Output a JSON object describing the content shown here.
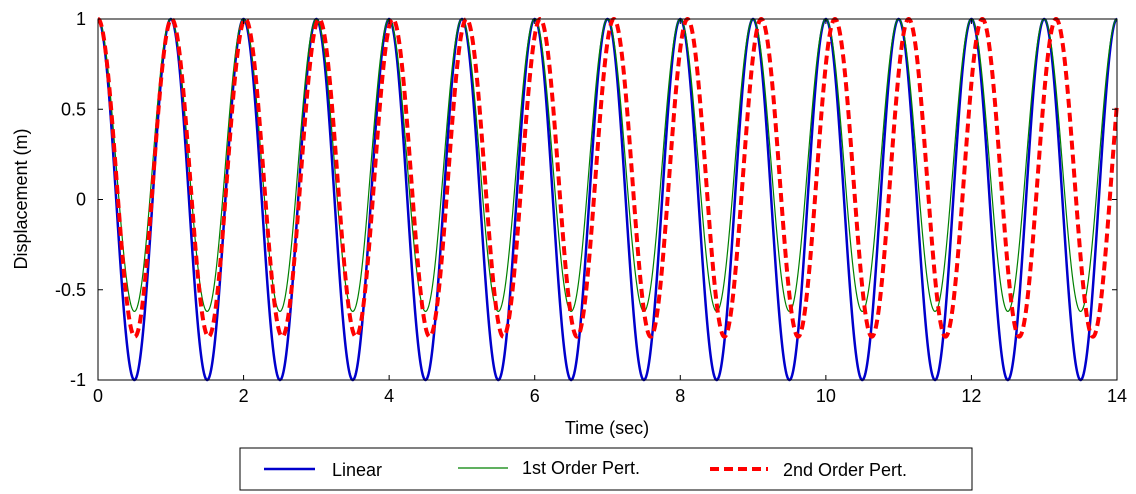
{
  "chart_data": {
    "type": "line",
    "title": "",
    "xlabel": "Time (sec)",
    "ylabel": "Displacement (m)",
    "xlim": [
      0,
      14
    ],
    "ylim": [
      -1,
      1
    ],
    "xticks": [
      0,
      2,
      4,
      6,
      8,
      10,
      12,
      14
    ],
    "xtick_labels": [
      "0",
      "2",
      "4",
      "6",
      "8",
      "10",
      "12",
      "14"
    ],
    "yticks": [
      -1,
      -0.5,
      0,
      0.5,
      1
    ],
    "ytick_labels": [
      "-1",
      "-0.5",
      "0",
      "0.5",
      "1"
    ],
    "grid": false,
    "legend_position": "bottom",
    "series": [
      {
        "name": "Linear",
        "color": "#0000cc",
        "style": "solid",
        "period": 1.0,
        "minimum": -1.0,
        "x": [
          0,
          0.5,
          1,
          1.5,
          2,
          2.5,
          3,
          3.5,
          4,
          4.5,
          5,
          5.5,
          6,
          6.5,
          7,
          7.5,
          8,
          8.5,
          9,
          9.5,
          10,
          10.5,
          11,
          11.5,
          12,
          12.5,
          13,
          13.5,
          14
        ],
        "y": [
          1,
          -1,
          1,
          -1,
          1,
          -1,
          1,
          -1,
          1,
          -1,
          1,
          -1,
          1,
          -1,
          1,
          -1,
          1,
          -1,
          1,
          -1,
          1,
          -1,
          1,
          -1,
          1,
          -1,
          1,
          -1,
          1
        ]
      },
      {
        "name": "1st Order Pert.",
        "color": "#008000",
        "style": "solid",
        "period": 1.0,
        "minimum": -0.62,
        "x": [
          0,
          0.5,
          1,
          1.5,
          2,
          2.5,
          3,
          3.5,
          4,
          4.5,
          5,
          5.5,
          6,
          6.5,
          7,
          7.5,
          8,
          8.5,
          9,
          9.5,
          10,
          10.5,
          11,
          11.5,
          12,
          12.5,
          13,
          13.5,
          14
        ],
        "y": [
          1,
          -0.62,
          1,
          -0.62,
          1,
          -0.62,
          1,
          -0.62,
          1,
          -0.62,
          1,
          -0.62,
          1,
          -0.62,
          1,
          -0.62,
          1,
          -0.62,
          1,
          -0.62,
          1,
          -0.62,
          1,
          -0.62,
          1,
          -0.62,
          1,
          -0.62,
          1
        ]
      },
      {
        "name": "2nd Order Pert.",
        "color": "#ff0000",
        "style": "dashed",
        "period": 1.0125,
        "minimum": -0.76,
        "x": [
          0,
          0.51,
          1.01,
          1.52,
          2.03,
          2.53,
          3.04,
          3.54,
          4.05,
          4.56,
          5.06,
          5.57,
          6.08,
          6.58,
          7.09,
          7.59,
          8.1,
          8.61,
          9.11,
          9.62,
          10.13,
          10.63,
          11.14,
          11.64,
          12.15,
          12.66,
          13.16,
          13.67,
          14
        ],
        "y": [
          1,
          -0.76,
          1,
          -0.76,
          1,
          -0.76,
          1,
          -0.76,
          1,
          -0.76,
          1,
          -0.76,
          1,
          -0.76,
          1,
          -0.76,
          1,
          -0.76,
          1,
          -0.76,
          1,
          -0.76,
          1,
          -0.76,
          1,
          -0.76,
          1,
          -0.76,
          0.6
        ]
      }
    ]
  }
}
